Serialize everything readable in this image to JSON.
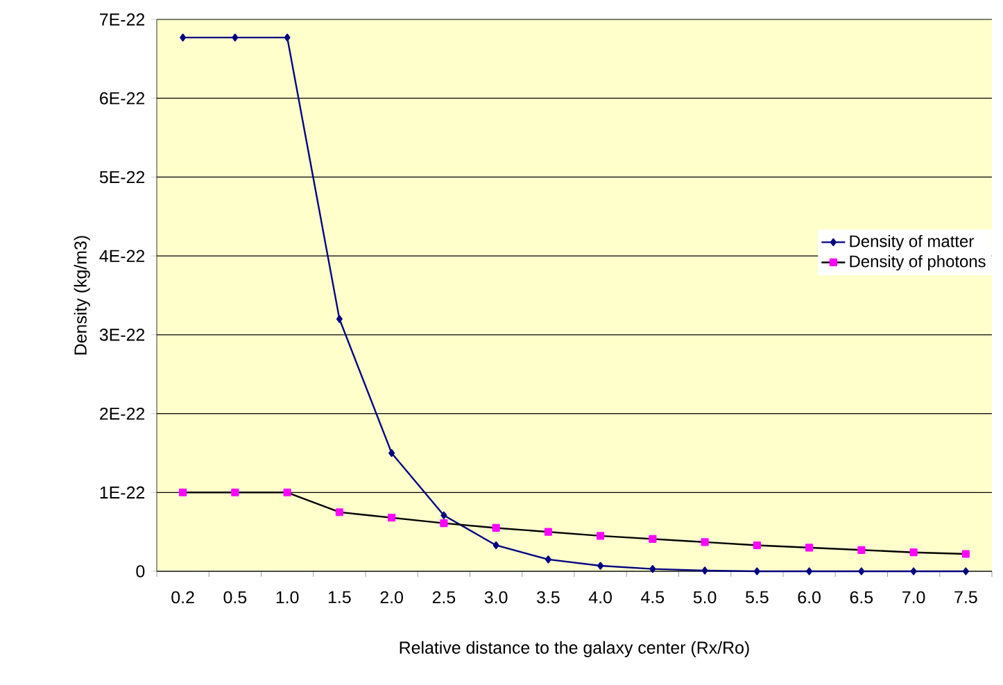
{
  "chart_data": {
    "type": "line",
    "xlabel": "Relative distance to the galaxy center (Rx/Ro)",
    "ylabel": "Density (kg/m3)",
    "categories": [
      "0.2",
      "0.5",
      "1.0",
      "1.5",
      "2.0",
      "2.5",
      "3.0",
      "3.5",
      "4.0",
      "4.5",
      "5.0",
      "5.5",
      "6.0",
      "6.5",
      "7.0",
      "7.5"
    ],
    "series": [
      {
        "name": "Density of matter",
        "color": "#000080",
        "marker": "diamond",
        "values": [
          6.77e-22,
          6.77e-22,
          6.77e-22,
          3.2e-22,
          1.5e-22,
          7.1e-23,
          3.3e-23,
          1.5e-23,
          7e-24,
          3e-24,
          1e-24,
          0,
          0,
          0,
          0,
          0
        ]
      },
      {
        "name": "Density of photons",
        "color": "#ff00ff",
        "marker": "square",
        "values": [
          1e-22,
          1e-22,
          1e-22,
          7.5e-23,
          6.8e-23,
          6.1e-23,
          5.5e-23,
          5e-23,
          4.5e-23,
          4.1e-23,
          3.7e-23,
          3.3e-23,
          3e-23,
          2.7e-23,
          2.4e-23,
          2.2e-23
        ]
      }
    ],
    "ylim": [
      0,
      7e-22
    ],
    "yticks": [
      0,
      {
        "value": 1e-22,
        "label": "1E-22"
      },
      {
        "value": 2e-22,
        "label": "2E-22"
      },
      {
        "value": 3e-22,
        "label": "3E-22"
      },
      {
        "value": 4e-22,
        "label": "4E-22"
      },
      {
        "value": 5e-22,
        "label": "5E-22"
      },
      {
        "value": 6e-22,
        "label": "6E-22"
      },
      {
        "value": 7e-22,
        "label": "7E-22"
      }
    ],
    "grid": "y",
    "legend": "right",
    "line_style": "solid"
  }
}
